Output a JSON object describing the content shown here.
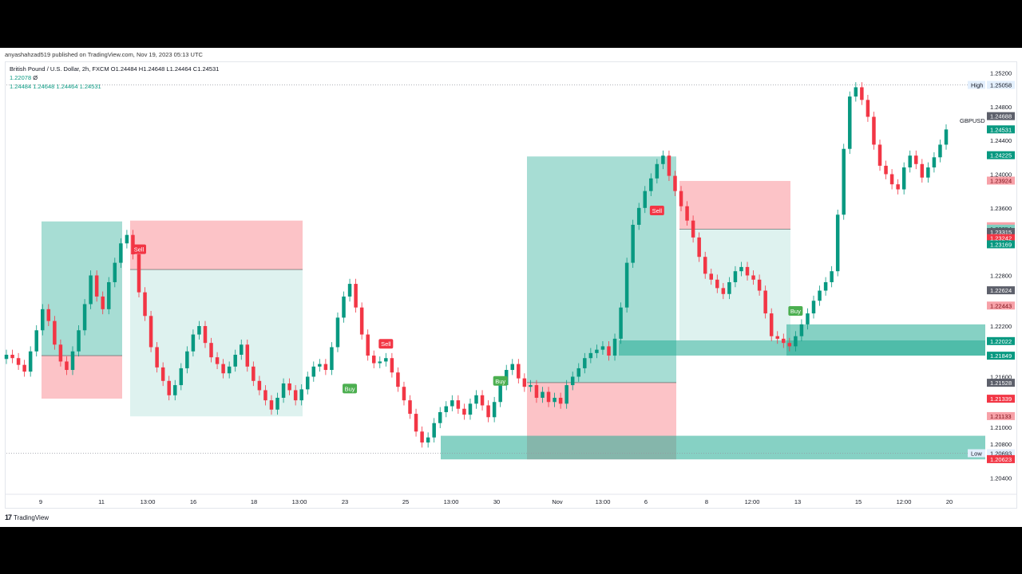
{
  "published_line": "anyashahzad519 published on TradingView.com, Nov 19, 2023 05:13 UTC",
  "legend": {
    "title": "British Pound / U.S. Dollar, 2h, FXCM",
    "open": "O1.24484",
    "high": "H1.24648",
    "low": "L1.24464",
    "close": "C1.24531",
    "indicator_value": "1.22078",
    "indicator_suffix": "Ø",
    "ohlc_line": "1.24484  1.24648  1.24464  1.24531"
  },
  "symbol_label": "GBPUSD",
  "footer": {
    "logo": "17",
    "brand": "TradingView"
  },
  "colors": {
    "up": "#089981",
    "down": "#f23645",
    "zone_green": "#22ab94",
    "zone_red": "#f7525f",
    "grey_badge": "#5d606b",
    "buy_badge": "#4caf50",
    "sell_badge": "#f23645"
  },
  "chart_data": {
    "type": "candlestick",
    "symbol": "GBPUSD",
    "timeframe": "2h",
    "y_axis_ticks": [
      1.252,
      1.248,
      1.244,
      1.24,
      1.236,
      1.232,
      1.228,
      1.222,
      1.216,
      1.21,
      1.208,
      1.204
    ],
    "y_tick_labels": [
      "1.25200",
      "1.24800",
      "1.24400",
      "1.24000",
      "1.23600",
      "1.23200",
      "1.22800",
      "1.22200",
      "1.21600",
      "1.21000",
      "1.20800",
      "1.20400"
    ],
    "ylim": [
      1.2017,
      1.2542
    ],
    "x_axis_labels": [
      "9",
      "11",
      "13:00",
      "16",
      "18",
      "13:00",
      "23",
      "25",
      "13:00",
      "30",
      "Nov",
      "13:00",
      "6",
      "8",
      "12:00",
      "13",
      "15",
      "12:00",
      "20"
    ],
    "price_badges": [
      {
        "label": "High",
        "value": "1.25058",
        "price": 1.25058,
        "style": "high"
      },
      {
        "label": "",
        "value": "1.24688",
        "price": 1.24688,
        "style": "grey"
      },
      {
        "label": "",
        "value": "1.24531",
        "price": 1.24531,
        "style": "green"
      },
      {
        "label": "",
        "value": "1.24225",
        "price": 1.24225,
        "style": "green"
      },
      {
        "label": "",
        "value": "1.23924",
        "price": 1.23924,
        "style": "lightred"
      },
      {
        "label": "",
        "value": "1.23383",
        "price": 1.23383,
        "style": "lightred"
      },
      {
        "label": "",
        "value": "1.23354",
        "price": 1.23354,
        "style": "lightgreen"
      },
      {
        "label": "",
        "value": "1.23315",
        "price": 1.23315,
        "style": "grey"
      },
      {
        "label": "",
        "value": "1.23242",
        "price": 1.23242,
        "style": "red"
      },
      {
        "label": "",
        "value": "1.23169",
        "price": 1.23169,
        "style": "green"
      },
      {
        "label": "",
        "value": "1.22624",
        "price": 1.22624,
        "style": "grey"
      },
      {
        "label": "",
        "value": "1.22443",
        "price": 1.22443,
        "style": "lightred"
      },
      {
        "label": "",
        "value": "1.22022",
        "price": 1.22022,
        "style": "green"
      },
      {
        "label": "",
        "value": "1.21849",
        "price": 1.21849,
        "style": "green"
      },
      {
        "label": "",
        "value": "1.21528",
        "price": 1.21528,
        "style": "grey"
      },
      {
        "label": "",
        "value": "1.21339",
        "price": 1.21339,
        "style": "red"
      },
      {
        "label": "",
        "value": "1.21133",
        "price": 1.21133,
        "style": "lightred"
      },
      {
        "label": "Low",
        "value": "1.20693",
        "price": 1.20693,
        "style": "low"
      },
      {
        "label": "",
        "value": "1.20623",
        "price": 1.20623,
        "style": "red"
      }
    ],
    "signals": [
      {
        "text": "Sell",
        "type": "sell",
        "x_index": 22,
        "price": 1.2311
      },
      {
        "text": "Sell",
        "type": "sell",
        "x_index": 63,
        "price": 1.2199
      },
      {
        "text": "Buy",
        "type": "buy",
        "x_index": 57,
        "price": 1.2146
      },
      {
        "text": "Buy",
        "type": "buy",
        "x_index": 82,
        "price": 1.2155
      },
      {
        "text": "Sell",
        "type": "sell",
        "x_index": 108,
        "price": 1.2357
      },
      {
        "text": "Buy",
        "type": "buy",
        "x_index": 131,
        "price": 1.2238
      }
    ],
    "position_zones": [
      {
        "kind": "long",
        "profit": [
          1.2344,
          1.2185
        ],
        "loss": [
          1.2185,
          1.2134
        ],
        "from": 0,
        "to": 1
      },
      {
        "kind": "short",
        "profit": [
          1.2287,
          1.2113
        ],
        "loss": [
          1.2345,
          1.2287
        ],
        "from": 2,
        "to": 3
      },
      {
        "kind": "long",
        "profit": [
          1.2421,
          1.2153
        ],
        "loss": [
          1.2153,
          1.2062
        ],
        "from": 4,
        "to": 5
      },
      {
        "kind": "short",
        "profit": [
          1.2335,
          1.2203
        ],
        "loss": [
          1.2392,
          1.2335
        ],
        "from": 6,
        "to": 7
      }
    ],
    "closes": [
      1.2186,
      1.2182,
      1.2174,
      1.2166,
      1.219,
      1.2215,
      1.224,
      1.2226,
      1.2198,
      1.2178,
      1.2168,
      1.219,
      1.2215,
      1.2246,
      1.228,
      1.2255,
      1.224,
      1.2272,
      1.2295,
      1.2318,
      1.2328,
      1.2305,
      1.226,
      1.2232,
      1.2195,
      1.2171,
      1.2155,
      1.2138,
      1.215,
      1.217,
      1.219,
      1.221,
      1.222,
      1.22,
      1.2183,
      1.2175,
      1.2164,
      1.2172,
      1.2186,
      1.2198,
      1.2172,
      1.2155,
      1.2144,
      1.2132,
      1.2121,
      1.2135,
      1.2152,
      1.2144,
      1.2132,
      1.2145,
      1.216,
      1.2172,
      1.2175,
      1.2168,
      1.2195,
      1.223,
      1.2255,
      1.227,
      1.2242,
      1.221,
      1.2185,
      1.2176,
      1.2178,
      1.2182,
      1.2165,
      1.2148,
      1.2132,
      1.2116,
      1.2095,
      1.2082,
      1.2088,
      1.2105,
      1.2118,
      1.2125,
      1.2132,
      1.2122,
      1.2115,
      1.2128,
      1.2138,
      1.2126,
      1.2112,
      1.213,
      1.215,
      1.2168,
      1.2175,
      1.2158,
      1.2148,
      1.215,
      1.2135,
      1.2142,
      1.213,
      1.2135,
      1.2128,
      1.215,
      1.216,
      1.217,
      1.2182,
      1.2188,
      1.2192,
      1.2196,
      1.2185,
      1.2205,
      1.2242,
      1.2295,
      1.234,
      1.236,
      1.238,
      1.2395,
      1.2412,
      1.2422,
      1.2398,
      1.238,
      1.2362,
      1.2345,
      1.2325,
      1.2302,
      1.2282,
      1.2275,
      1.2265,
      1.2258,
      1.2272,
      1.2285,
      1.229,
      1.228,
      1.2275,
      1.2262,
      1.2235,
      1.2208,
      1.2205,
      1.22,
      1.2196,
      1.2208,
      1.2222,
      1.2235,
      1.225,
      1.2262,
      1.2272,
      1.2285,
      1.2352,
      1.243,
      1.2492,
      1.2503,
      1.2488,
      1.2468,
      1.2435,
      1.241,
      1.24,
      1.2388,
      1.2382,
      1.2408,
      1.2422,
      1.2412,
      1.2396,
      1.2408,
      1.242,
      1.2435,
      1.2453
    ]
  }
}
